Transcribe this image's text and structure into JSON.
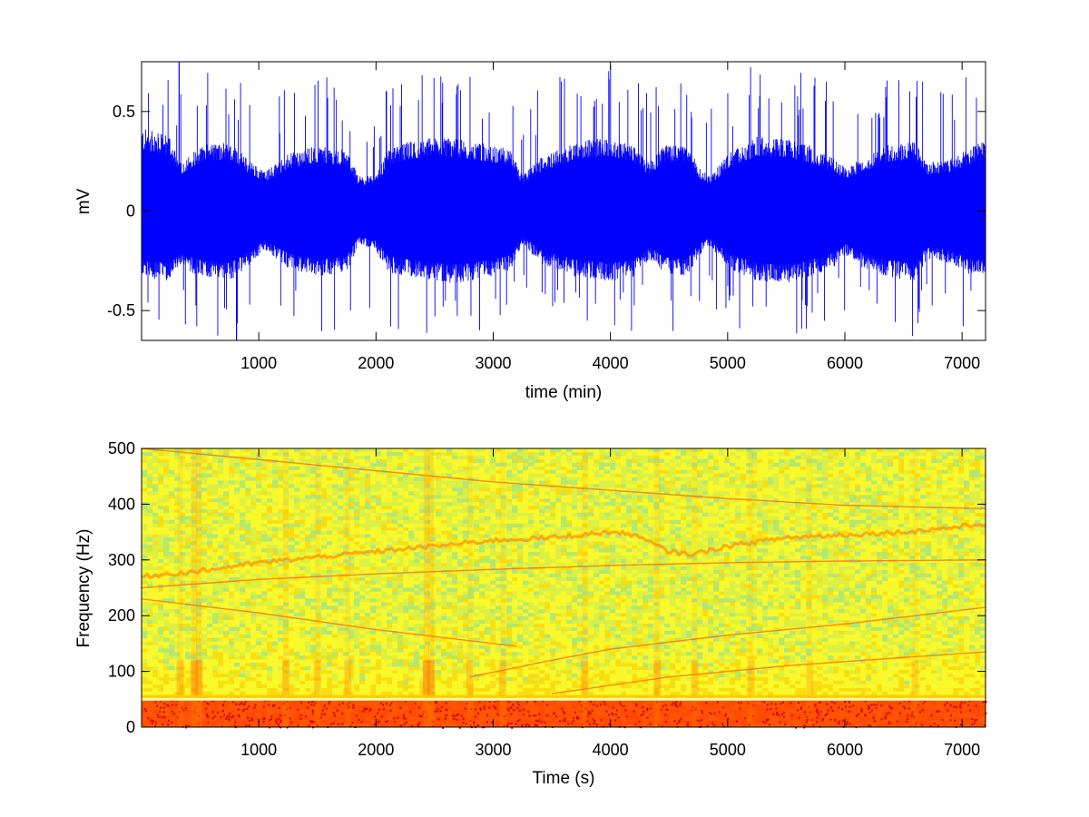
{
  "chart_data": [
    {
      "type": "line",
      "title": "",
      "xlabel": "time (min)",
      "ylabel": "mV",
      "xlim": [
        0,
        7200
      ],
      "ylim": [
        -0.65,
        0.75
      ],
      "x_ticks": [
        1000,
        2000,
        3000,
        4000,
        5000,
        6000,
        7000
      ],
      "y_ticks": [
        -0.5,
        0,
        0.5
      ],
      "grid": false,
      "legend": "none",
      "series": [
        {
          "color": "#0000ff",
          "envelope_x": [
            0,
            250,
            320,
            500,
            750,
            900,
            1050,
            1250,
            1500,
            1750,
            1850,
            2000,
            2100,
            2300,
            2500,
            2700,
            3000,
            3150,
            3250,
            3400,
            3700,
            4000,
            4200,
            4330,
            4450,
            4650,
            4760,
            4850,
            5000,
            5250,
            5500,
            5700,
            5900,
            6000,
            6150,
            6350,
            6600,
            6700,
            6900,
            7100,
            7200
          ],
          "envelope_upper": [
            0.38,
            0.34,
            0.22,
            0.3,
            0.32,
            0.24,
            0.18,
            0.26,
            0.3,
            0.28,
            0.16,
            0.16,
            0.28,
            0.32,
            0.34,
            0.33,
            0.3,
            0.28,
            0.16,
            0.24,
            0.32,
            0.34,
            0.3,
            0.22,
            0.3,
            0.3,
            0.2,
            0.16,
            0.26,
            0.34,
            0.33,
            0.3,
            0.24,
            0.2,
            0.24,
            0.3,
            0.32,
            0.22,
            0.24,
            0.3,
            0.32
          ],
          "envelope_lower": [
            -0.3,
            -0.32,
            -0.26,
            -0.3,
            -0.32,
            -0.26,
            -0.18,
            -0.26,
            -0.3,
            -0.28,
            -0.16,
            -0.18,
            -0.28,
            -0.3,
            -0.32,
            -0.33,
            -0.3,
            -0.27,
            -0.15,
            -0.24,
            -0.3,
            -0.32,
            -0.3,
            -0.22,
            -0.28,
            -0.3,
            -0.2,
            -0.16,
            -0.26,
            -0.32,
            -0.33,
            -0.3,
            -0.26,
            -0.2,
            -0.26,
            -0.3,
            -0.32,
            -0.22,
            -0.24,
            -0.3,
            -0.3
          ],
          "peak_max": 0.75,
          "peak_min": -0.65
        }
      ]
    },
    {
      "type": "heatmap",
      "title": "",
      "xlabel": "Time (s)",
      "ylabel": "Frequency (Hz)",
      "xlim": [
        0,
        7200
      ],
      "ylim": [
        0,
        500
      ],
      "x_ticks": [
        1000,
        2000,
        3000,
        4000,
        5000,
        6000,
        7000
      ],
      "y_ticks": [
        0,
        100,
        200,
        300,
        400,
        500
      ],
      "colormap": [
        "#d00000",
        "#ff6a00",
        "#ffd000",
        "#ffff33",
        "#c8f060",
        "#80e0b0"
      ],
      "background_color": "#f2f022",
      "low_frequency_band": {
        "from": 0,
        "to": 50,
        "color": "#ff3a00"
      },
      "horizontal_bands": [
        {
          "freq": 50,
          "color": "#ffffaa"
        },
        {
          "freq": 55,
          "color": "#ffcc00"
        }
      ],
      "tracks": [
        {
          "name": "",
          "color": "#ff9900",
          "x": [
            0,
            500,
            1000,
            1500,
            2000,
            2500,
            3000,
            3500,
            4000,
            4200,
            4500,
            4700,
            5000,
            5500,
            6000,
            6500,
            7000,
            7200
          ],
          "y": [
            270,
            280,
            295,
            305,
            315,
            325,
            335,
            340,
            350,
            345,
            315,
            310,
            325,
            340,
            345,
            350,
            360,
            365
          ]
        },
        {
          "name": "",
          "color": "#ff6600",
          "x": [
            0,
            1000,
            2000,
            3000,
            4000,
            5000,
            6000,
            7200
          ],
          "y": [
            250,
            265,
            275,
            283,
            290,
            295,
            298,
            300
          ]
        },
        {
          "name": "",
          "color": "#ff6600",
          "x": [
            0,
            1000,
            2000,
            3000,
            4000,
            5000,
            6000,
            7200
          ],
          "y": [
            500,
            480,
            460,
            440,
            425,
            410,
            398,
            392
          ]
        },
        {
          "name": "",
          "color": "#ff6600",
          "x": [
            2800,
            3500,
            4000,
            5000,
            6000,
            7200
          ],
          "y": [
            90,
            120,
            140,
            165,
            185,
            215
          ]
        },
        {
          "name": "",
          "color": "#ff6600",
          "x": [
            0,
            1000,
            2000,
            3000,
            3200
          ],
          "y": [
            230,
            205,
            175,
            150,
            145
          ]
        },
        {
          "name": "",
          "color": "#ff6600",
          "x": [
            3500,
            4500,
            5500,
            6500,
            7200
          ],
          "y": [
            60,
            90,
            110,
            125,
            135
          ]
        }
      ],
      "vertical_bursts": [
        {
          "x": 330,
          "strength": 0.6
        },
        {
          "x": 450,
          "strength": 0.9
        },
        {
          "x": 490,
          "strength": 0.8
        },
        {
          "x": 1230,
          "strength": 0.6
        },
        {
          "x": 1500,
          "strength": 0.5
        },
        {
          "x": 1760,
          "strength": 0.5
        },
        {
          "x": 2430,
          "strength": 0.95
        },
        {
          "x": 2470,
          "strength": 0.9
        },
        {
          "x": 2800,
          "strength": 0.5
        },
        {
          "x": 3080,
          "strength": 0.5
        },
        {
          "x": 3780,
          "strength": 0.6
        },
        {
          "x": 4400,
          "strength": 0.6
        },
        {
          "x": 4720,
          "strength": 0.5
        },
        {
          "x": 5200,
          "strength": 0.5
        },
        {
          "x": 5700,
          "strength": 0.4
        },
        {
          "x": 6600,
          "strength": 0.4
        }
      ]
    }
  ]
}
